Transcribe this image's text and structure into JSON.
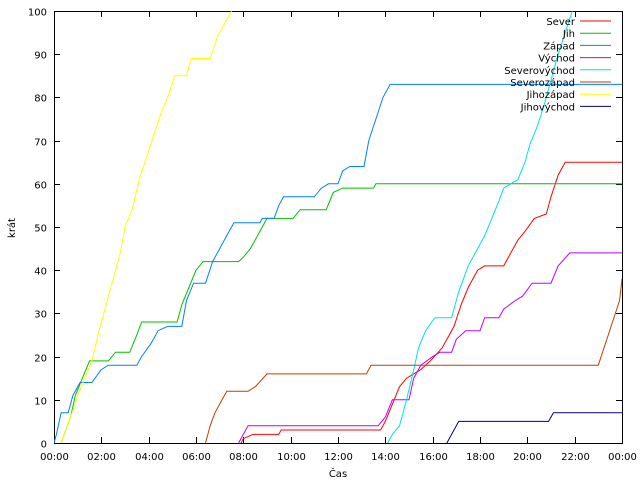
{
  "chart_data": {
    "type": "line",
    "title": "",
    "xlabel": "Čas",
    "ylabel": "krát",
    "xlim": [
      0,
      24
    ],
    "ylim": [
      0,
      100
    ],
    "x_unit": "hours since 00:00",
    "x_ticks": [
      {
        "v": 0,
        "label": "00:00"
      },
      {
        "v": 2,
        "label": "02:00"
      },
      {
        "v": 4,
        "label": "04:00"
      },
      {
        "v": 6,
        "label": "06:00"
      },
      {
        "v": 8,
        "label": "08:00"
      },
      {
        "v": 10,
        "label": "10:00"
      },
      {
        "v": 12,
        "label": "12:00"
      },
      {
        "v": 14,
        "label": "14:00"
      },
      {
        "v": 16,
        "label": "16:00"
      },
      {
        "v": 18,
        "label": "18:00"
      },
      {
        "v": 20,
        "label": "20:00"
      },
      {
        "v": 22,
        "label": "22:00"
      },
      {
        "v": 24,
        "label": "00:00"
      }
    ],
    "y_ticks": [
      0,
      10,
      20,
      30,
      40,
      50,
      60,
      70,
      80,
      90,
      100
    ],
    "grid": false,
    "legend_position": "top-right",
    "series": [
      {
        "name": "Sever",
        "color": "#ff0000",
        "points": [
          [
            7.9,
            0
          ],
          [
            8.0,
            1
          ],
          [
            8.4,
            2
          ],
          [
            9.5,
            2
          ],
          [
            9.6,
            3
          ],
          [
            13.8,
            3
          ],
          [
            14.0,
            5
          ],
          [
            14.3,
            9
          ],
          [
            14.6,
            13
          ],
          [
            14.9,
            15
          ],
          [
            15.5,
            17
          ],
          [
            15.9,
            19
          ],
          [
            16.4,
            22
          ],
          [
            16.9,
            27
          ],
          [
            17.2,
            32
          ],
          [
            17.5,
            36
          ],
          [
            17.9,
            40
          ],
          [
            18.2,
            41
          ],
          [
            19.0,
            41
          ],
          [
            19.3,
            44
          ],
          [
            19.6,
            47
          ],
          [
            19.9,
            49
          ],
          [
            20.3,
            52
          ],
          [
            20.8,
            53
          ],
          [
            21.0,
            57
          ],
          [
            21.3,
            62
          ],
          [
            21.6,
            65
          ],
          [
            24.0,
            65
          ]
        ]
      },
      {
        "name": "Jih",
        "color": "#00c000",
        "points": [
          [
            0.3,
            0
          ],
          [
            0.5,
            3
          ],
          [
            0.7,
            6
          ],
          [
            0.9,
            11
          ],
          [
            1.2,
            15
          ],
          [
            1.5,
            19
          ],
          [
            2.3,
            19
          ],
          [
            2.6,
            21
          ],
          [
            3.2,
            21
          ],
          [
            3.5,
            25
          ],
          [
            3.7,
            28
          ],
          [
            5.2,
            28
          ],
          [
            5.4,
            32
          ],
          [
            5.7,
            36
          ],
          [
            6.0,
            40
          ],
          [
            6.3,
            42
          ],
          [
            7.8,
            42
          ],
          [
            8.0,
            43
          ],
          [
            8.3,
            45
          ],
          [
            8.7,
            49
          ],
          [
            9.0,
            52
          ],
          [
            10.1,
            52
          ],
          [
            10.4,
            54
          ],
          [
            11.5,
            54
          ],
          [
            11.8,
            58
          ],
          [
            12.2,
            59
          ],
          [
            13.5,
            59
          ],
          [
            13.6,
            60
          ],
          [
            24.0,
            60
          ]
        ]
      },
      {
        "name": "Západ",
        "color": "#0080ff",
        "points": [
          [
            0,
            0
          ],
          [
            0.1,
            2
          ],
          [
            0.3,
            7
          ],
          [
            0.6,
            7
          ],
          [
            0.8,
            11
          ],
          [
            1.1,
            14
          ],
          [
            1.6,
            14
          ],
          [
            2.0,
            17
          ],
          [
            2.3,
            18
          ],
          [
            3.5,
            18
          ],
          [
            3.7,
            20
          ],
          [
            4.1,
            23
          ],
          [
            4.4,
            26
          ],
          [
            4.8,
            27
          ],
          [
            5.4,
            27
          ],
          [
            5.6,
            33
          ],
          [
            5.9,
            37
          ],
          [
            6.4,
            37
          ],
          [
            6.7,
            42
          ],
          [
            7.0,
            45
          ],
          [
            7.3,
            48
          ],
          [
            7.6,
            51
          ],
          [
            8.7,
            51
          ],
          [
            8.8,
            52
          ],
          [
            9.3,
            52
          ],
          [
            9.5,
            55
          ],
          [
            9.7,
            57
          ],
          [
            11.0,
            57
          ],
          [
            11.3,
            59
          ],
          [
            11.6,
            60
          ],
          [
            12.0,
            60
          ],
          [
            12.2,
            63
          ],
          [
            12.5,
            64
          ],
          [
            13.1,
            64
          ],
          [
            13.3,
            70
          ],
          [
            13.6,
            75
          ],
          [
            13.9,
            80
          ],
          [
            14.2,
            83
          ],
          [
            24.0,
            83
          ]
        ]
      },
      {
        "name": "Východ",
        "color": "#c000ff",
        "points": [
          [
            7.8,
            0
          ],
          [
            8.0,
            2
          ],
          [
            8.2,
            4
          ],
          [
            13.7,
            4
          ],
          [
            14.0,
            6
          ],
          [
            14.3,
            10
          ],
          [
            15.0,
            10
          ],
          [
            15.2,
            15
          ],
          [
            15.5,
            18
          ],
          [
            16.0,
            20
          ],
          [
            16.3,
            21
          ],
          [
            16.8,
            21
          ],
          [
            17.0,
            24
          ],
          [
            17.4,
            26
          ],
          [
            18.0,
            26
          ],
          [
            18.2,
            29
          ],
          [
            18.8,
            29
          ],
          [
            19.0,
            31
          ],
          [
            19.5,
            33
          ],
          [
            19.8,
            34
          ],
          [
            20.2,
            37
          ],
          [
            21.0,
            37
          ],
          [
            21.3,
            41
          ],
          [
            21.8,
            44
          ],
          [
            24.0,
            44
          ]
        ]
      },
      {
        "name": "Severovýchod",
        "color": "#00e0e0",
        "points": [
          [
            14.1,
            0
          ],
          [
            14.3,
            2
          ],
          [
            14.6,
            4
          ],
          [
            14.9,
            10
          ],
          [
            15.2,
            17
          ],
          [
            15.4,
            22
          ],
          [
            15.7,
            26
          ],
          [
            16.1,
            29
          ],
          [
            16.8,
            29
          ],
          [
            17.1,
            35
          ],
          [
            17.5,
            41
          ],
          [
            17.9,
            45
          ],
          [
            18.2,
            48
          ],
          [
            18.5,
            52
          ],
          [
            18.8,
            56
          ],
          [
            19.0,
            59
          ],
          [
            19.6,
            61
          ],
          [
            19.9,
            65
          ],
          [
            20.1,
            69
          ],
          [
            20.4,
            73
          ],
          [
            20.7,
            78
          ],
          [
            21.0,
            84
          ],
          [
            21.3,
            90
          ],
          [
            21.6,
            95
          ],
          [
            21.9,
            100
          ]
        ]
      },
      {
        "name": "Severozápad",
        "color": "#c04000",
        "points": [
          [
            6.4,
            0
          ],
          [
            6.6,
            4
          ],
          [
            6.8,
            7
          ],
          [
            7.1,
            10
          ],
          [
            7.3,
            12
          ],
          [
            8.2,
            12
          ],
          [
            8.5,
            13
          ],
          [
            9.0,
            16
          ],
          [
            13.2,
            16
          ],
          [
            13.4,
            18
          ],
          [
            23.0,
            18
          ],
          [
            23.3,
            23
          ],
          [
            23.6,
            28
          ],
          [
            23.9,
            33
          ],
          [
            24.0,
            38
          ]
        ]
      },
      {
        "name": "Jihozápad",
        "color": "#ffff00",
        "points": [
          [
            0.3,
            0
          ],
          [
            0.5,
            3
          ],
          [
            0.7,
            6
          ],
          [
            1.0,
            11
          ],
          [
            1.3,
            15
          ],
          [
            1.6,
            19
          ],
          [
            1.9,
            26
          ],
          [
            2.2,
            32
          ],
          [
            2.5,
            38
          ],
          [
            2.8,
            44
          ],
          [
            3.0,
            50
          ],
          [
            3.3,
            54
          ],
          [
            3.6,
            61
          ],
          [
            3.9,
            66
          ],
          [
            4.2,
            71
          ],
          [
            4.5,
            76
          ],
          [
            4.8,
            80
          ],
          [
            5.1,
            85
          ],
          [
            5.6,
            85
          ],
          [
            5.8,
            89
          ],
          [
            6.6,
            89
          ],
          [
            6.9,
            94
          ],
          [
            7.2,
            97
          ],
          [
            7.5,
            100
          ]
        ]
      },
      {
        "name": "Jihovýchod",
        "color": "#000080",
        "points": [
          [
            16.6,
            0
          ],
          [
            16.8,
            2
          ],
          [
            17.1,
            5
          ],
          [
            18.9,
            5
          ],
          [
            19.0,
            5
          ],
          [
            20.9,
            5
          ],
          [
            21.1,
            7
          ],
          [
            24.0,
            7
          ]
        ]
      }
    ]
  }
}
